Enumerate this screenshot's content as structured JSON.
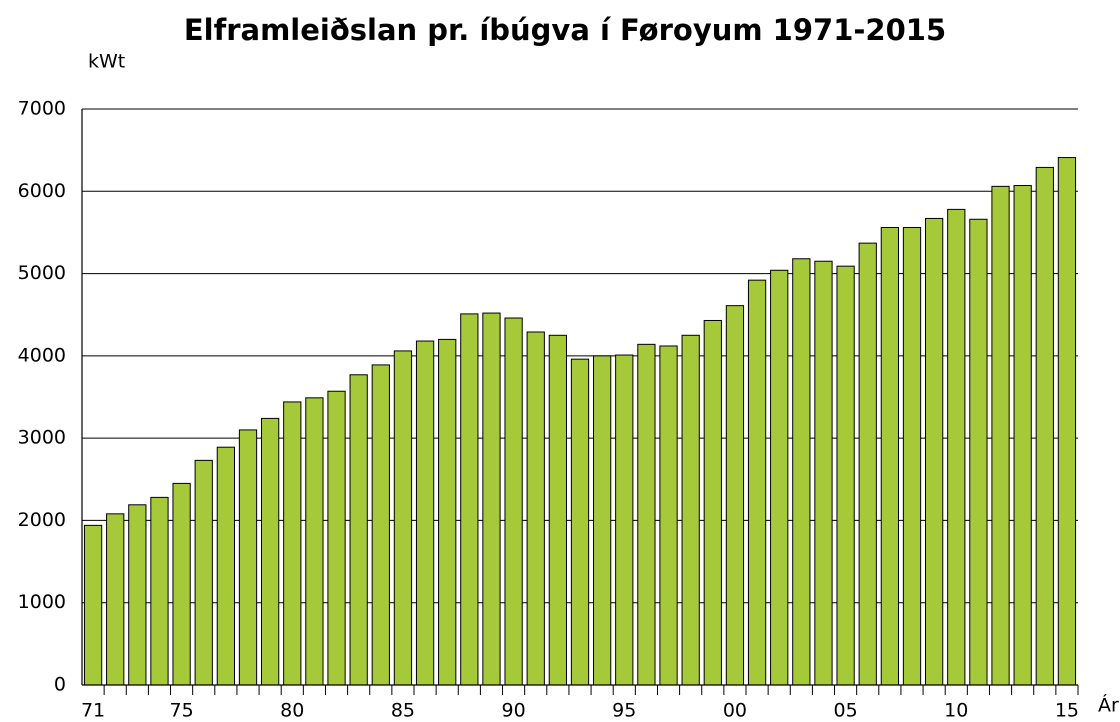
{
  "chart_data": {
    "type": "bar",
    "title": "Elframleiðslan pr. íbúgva í Føroyum 1971-2015",
    "y_label": "kWt",
    "x_label": "Ár",
    "categories": [
      "71",
      null,
      null,
      null,
      "75",
      null,
      null,
      null,
      null,
      "80",
      null,
      null,
      null,
      null,
      "85",
      null,
      null,
      null,
      null,
      "90",
      null,
      null,
      null,
      null,
      "95",
      null,
      null,
      null,
      null,
      "00",
      null,
      null,
      null,
      null,
      "05",
      null,
      null,
      null,
      null,
      "10",
      null,
      null,
      null,
      null,
      "15"
    ],
    "values": [
      1940,
      2080,
      2190,
      2280,
      2450,
      2730,
      2890,
      3100,
      3240,
      3440,
      3490,
      3570,
      3770,
      3890,
      4060,
      4180,
      4200,
      4510,
      4520,
      4460,
      4290,
      4250,
      3960,
      4000,
      4010,
      4140,
      4120,
      4250,
      4430,
      4610,
      4920,
      5040,
      5180,
      5150,
      5090,
      5370,
      5560,
      5560,
      5670,
      5780,
      5660,
      6060,
      6070,
      6290,
      6410
    ],
    "color": "#a6c93a",
    "ylim": [
      0,
      7000
    ],
    "yticks": [
      0,
      1000,
      2000,
      3000,
      4000,
      5000,
      6000,
      7000
    ],
    "grid": true
  }
}
